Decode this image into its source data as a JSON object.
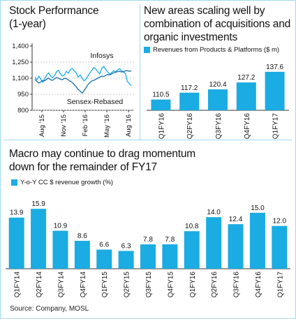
{
  "colors": {
    "accent": "#1aace2",
    "line": "#1aace2",
    "sensex": "#1a6fa8",
    "text": "#111111"
  },
  "chart_data": [
    {
      "type": "line",
      "title": "Stock Performance\n(1-year)",
      "ylim": [
        800,
        1400
      ],
      "yticks": [
        "1,400",
        "1,250",
        "1,100",
        "950",
        "800"
      ],
      "yticks_values": [
        1400,
        1250,
        1100,
        950,
        800
      ],
      "xticks": [
        "Aug '15",
        "Nov '15",
        "Feb '16",
        "May '16",
        "Aug '16"
      ],
      "series": [
        {
          "name": "Infosys",
          "values": [
            1110,
            1085,
            1120,
            1090,
            1060,
            1095,
            1130,
            1150,
            1120,
            1105,
            1125,
            1160,
            1175,
            1140,
            1120,
            1130,
            1165,
            1145,
            1180,
            1190,
            1170,
            1150,
            1110,
            1130,
            1100,
            1075,
            1090,
            1120,
            1150,
            1175,
            1200,
            1185,
            1160,
            1140,
            1190,
            1210,
            1180,
            1160,
            1140,
            1150,
            1170,
            1160,
            1175,
            1190,
            1170,
            1155,
            1145,
            1070,
            1050,
            1030
          ]
        },
        {
          "name": "Sensex-Rebased",
          "values": [
            1090,
            1070,
            1055,
            1065,
            1080,
            1075,
            1090,
            1100,
            1085,
            1080,
            1095,
            1105,
            1100,
            1090,
            1085,
            1100,
            1095,
            1085,
            1070,
            1060,
            1040,
            1020,
            995,
            980,
            960,
            985,
            1010,
            1040,
            1060,
            1075,
            1080,
            1090,
            1100,
            1110,
            1120,
            1115,
            1125,
            1135,
            1130,
            1140,
            1150,
            1155,
            1160,
            1165,
            1158,
            1162,
            1168,
            1170,
            1165,
            1168
          ]
        }
      ]
    },
    {
      "type": "bar",
      "title": "New areas scaling well by combination of acquisitions and organic investments",
      "legend": "Revenues from Products & Platforms ($ m)",
      "categories": [
        "Q1FY16",
        "Q2FY16",
        "Q3FY16",
        "Q4FY16",
        "Q1FY17"
      ],
      "values": [
        110.5,
        117.2,
        120.4,
        127.2,
        137.6
      ],
      "labels": [
        "110.5",
        "117.2",
        "120.4",
        "127.2",
        "137.6"
      ],
      "ylim": [
        100,
        145
      ]
    },
    {
      "type": "bar",
      "title": "Macro may continue to drag momentum down for the remainder of FY17",
      "legend": "Y-o-Y CC $ revenue growth (%)",
      "categories": [
        "Q1FY14",
        "Q2FY14",
        "Q3FY14",
        "Q4FY14",
        "Q1FY15",
        "Q2FY15",
        "Q3FY15",
        "Q4FY15",
        "Q1FY16",
        "Q2FY16",
        "Q3FY16",
        "Q4FY16",
        "Q1FY17"
      ],
      "values": [
        13.9,
        15.9,
        10.9,
        8.6,
        6.6,
        6.3,
        7.8,
        7.8,
        10.8,
        14.0,
        12.4,
        15.0,
        12.0
      ],
      "labels": [
        "13.9",
        "15.9",
        "10.9",
        "8.6",
        "6.6",
        "6.3",
        "7.8",
        "7.8",
        "10.8",
        "14.0",
        "12.4",
        "15.0",
        "12.0"
      ],
      "ylim": [
        0,
        18
      ]
    }
  ],
  "footer": {
    "source": "Source: Company, MOSL"
  }
}
